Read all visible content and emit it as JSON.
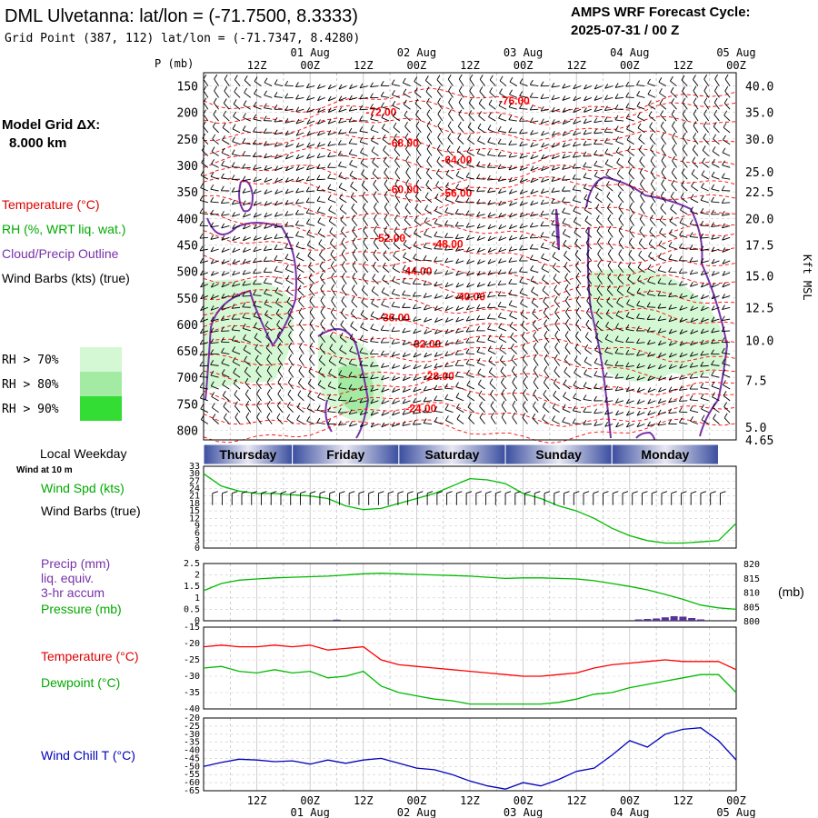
{
  "header": {
    "title": "DML Ulvetanna:  lat/lon = (-71.7500, 8.3333)",
    "grid_point": "Grid Point (387, 112) lat/lon = (-71.7347, 8.4280)",
    "forecast_label": "AMPS WRF Forecast Cycle:",
    "forecast_cycle": "2025-07-31 / 00  Z"
  },
  "sidebar": {
    "model_grid_label": "Model Grid ΔX:",
    "model_grid_value": "8.000 km",
    "legend_temperature": "Temperature (°C)",
    "legend_rh": "RH (%, WRT liq. wat.)",
    "legend_cloud": "Cloud/Precip Outline",
    "legend_wind": "Wind Barbs (kts) (true)",
    "rh_levels": [
      {
        "label": "RH > 70%",
        "color": "#d4f7d4"
      },
      {
        "label": "RH > 80%",
        "color": "#a3eba3"
      },
      {
        "label": "RH > 90%",
        "color": "#33dd33"
      }
    ]
  },
  "colors": {
    "temperature": "#ff0000",
    "rh": "#00aa00",
    "cloud": "#7733aa",
    "pressure": "#00bb00",
    "precip": "#553399",
    "dewpoint": "#00bb00",
    "windchill": "#0000bb",
    "windspd": "#00bb00",
    "weekday_band": "#3a4ea0"
  },
  "time_axis": {
    "hours": [
      0,
      120
    ],
    "ticks": [
      {
        "h": 12,
        "label": "12Z"
      },
      {
        "h": 24,
        "label": "00Z"
      },
      {
        "h": 36,
        "label": "12Z"
      },
      {
        "h": 48,
        "label": "00Z"
      },
      {
        "h": 60,
        "label": "12Z"
      },
      {
        "h": 72,
        "label": "00Z"
      },
      {
        "h": 84,
        "label": "12Z"
      },
      {
        "h": 96,
        "label": "00Z"
      },
      {
        "h": 108,
        "label": "12Z"
      },
      {
        "h": 120,
        "label": "00Z"
      }
    ],
    "dates": [
      {
        "h": 24,
        "label": "01 Aug"
      },
      {
        "h": 48,
        "label": "02 Aug"
      },
      {
        "h": 72,
        "label": "03 Aug"
      },
      {
        "h": 96,
        "label": "04 Aug"
      },
      {
        "h": 120,
        "label": "05 Aug"
      }
    ]
  },
  "weekday": {
    "label": "Local Weekday",
    "days": [
      {
        "label": "Thursday",
        "start": 0,
        "end": 20
      },
      {
        "label": "Friday",
        "start": 20,
        "end": 44
      },
      {
        "label": "Saturday",
        "start": 44,
        "end": 68
      },
      {
        "label": "Sunday",
        "start": 68,
        "end": 92
      },
      {
        "label": "Monday",
        "start": 92,
        "end": 116
      }
    ]
  },
  "chart_data": [
    {
      "type": "heatmap",
      "ylabel": "P (mb)",
      "y2label": "Kft MSL",
      "pressure_ticks": [
        150,
        200,
        250,
        300,
        350,
        400,
        450,
        500,
        550,
        600,
        650,
        700,
        750,
        800
      ],
      "height_ticks": [
        {
          "p": 150,
          "label": "40.0"
        },
        {
          "p": 200,
          "label": "35.0"
        },
        {
          "p": 250,
          "label": "30.0"
        },
        {
          "p": 312,
          "label": "25.0"
        },
        {
          "p": 350,
          "label": "22.5"
        },
        {
          "p": 400,
          "label": "20.0"
        },
        {
          "p": 450,
          "label": "17.5"
        },
        {
          "p": 508,
          "label": "15.0"
        },
        {
          "p": 568,
          "label": "12.5"
        },
        {
          "p": 630,
          "label": "10.0"
        },
        {
          "p": 706,
          "label": "7.5"
        },
        {
          "p": 794,
          "label": "5.0"
        },
        {
          "p": 818,
          "label": "4.65"
        }
      ],
      "temperature_labels": [
        {
          "h": 70,
          "p": 178,
          "label": "-76.00"
        },
        {
          "h": 40,
          "p": 200,
          "label": "-72.00"
        },
        {
          "h": 45,
          "p": 258,
          "label": "-68.00"
        },
        {
          "h": 57,
          "p": 290,
          "label": "-64.00"
        },
        {
          "h": 45,
          "p": 345,
          "label": "-60.00"
        },
        {
          "h": 57,
          "p": 352,
          "label": "-56.00"
        },
        {
          "h": 42,
          "p": 437,
          "label": "-52.00"
        },
        {
          "h": 55,
          "p": 448,
          "label": "-48.00"
        },
        {
          "h": 48,
          "p": 500,
          "label": "-44.00"
        },
        {
          "h": 60,
          "p": 548,
          "label": "-40.00"
        },
        {
          "h": 43,
          "p": 587,
          "label": "-36.00"
        },
        {
          "h": 50,
          "p": 637,
          "label": "-32.00"
        },
        {
          "h": 53,
          "p": 698,
          "label": "-28.00"
        },
        {
          "h": 49,
          "p": 759,
          "label": "-24.00"
        }
      ]
    },
    {
      "type": "line",
      "title": "Wind at 10 m",
      "ylabel": "Wind Spd (kts)",
      "y2label": "Wind Barbs (true)",
      "yticks": [
        0,
        3,
        6,
        9,
        12,
        15,
        18,
        21,
        24,
        27,
        30,
        33
      ],
      "series": [
        {
          "name": "Wind Spd (kts)",
          "x": [
            0,
            4,
            8,
            12,
            16,
            20,
            24,
            28,
            32,
            36,
            40,
            44,
            48,
            52,
            56,
            60,
            64,
            68,
            72,
            76,
            80,
            84,
            88,
            92,
            96,
            100,
            104,
            108,
            112,
            116,
            120
          ],
          "values": [
            30,
            25,
            23,
            22,
            22,
            21.5,
            21,
            20,
            17,
            15.5,
            16,
            18,
            20,
            22,
            25,
            28,
            27.5,
            26,
            22,
            20,
            17,
            15,
            12,
            8,
            5,
            3,
            2,
            2,
            2.5,
            3,
            10
          ]
        }
      ]
    },
    {
      "type": "line",
      "ylabel": "Precip (mm)",
      "ylabel_2": "liq. equiv.",
      "ylabel_3": "3-hr accum",
      "ylabel_4": "Pressure (mb)",
      "y2unit": "(mb)",
      "yticks": [
        0,
        0.5,
        1,
        1.5,
        2,
        2.5
      ],
      "y2ticks": [
        800,
        805,
        810,
        815,
        820
      ],
      "series": [
        {
          "name": "Pressure (mb)",
          "x": [
            0,
            4,
            8,
            12,
            16,
            20,
            24,
            28,
            32,
            36,
            40,
            44,
            48,
            52,
            56,
            60,
            64,
            68,
            72,
            76,
            80,
            84,
            88,
            92,
            96,
            100,
            104,
            108,
            112,
            116,
            120
          ],
          "values": [
            810.5,
            813,
            814.2,
            814.6,
            815,
            815.2,
            815.4,
            815.6,
            816.0,
            816.4,
            816.6,
            816.4,
            816.2,
            816.0,
            815.8,
            815.6,
            815.2,
            814.8,
            815.0,
            815.0,
            814.8,
            814.6,
            814.0,
            813.0,
            812.0,
            810.8,
            809.2,
            807.5,
            805.5,
            804.5,
            804.0
          ]
        },
        {
          "name": "Precip (mm)",
          "x": [
            30,
            98,
            100,
            102,
            104,
            106,
            108,
            110,
            112
          ],
          "values": [
            0.05,
            0.06,
            0.08,
            0.1,
            0.15,
            0.2,
            0.18,
            0.12,
            0.06
          ]
        }
      ]
    },
    {
      "type": "line",
      "ylabel": "Temperature (°C)",
      "ylabel_2": "Dewpoint (°C)",
      "ylim": [
        -40,
        -15
      ],
      "yticks": [
        -15,
        -20,
        -25,
        -30,
        -35,
        -40
      ],
      "series": [
        {
          "name": "Temperature (°C)",
          "x": [
            0,
            4,
            8,
            12,
            16,
            20,
            24,
            28,
            32,
            36,
            40,
            44,
            48,
            52,
            56,
            60,
            64,
            68,
            72,
            76,
            80,
            84,
            88,
            92,
            96,
            100,
            104,
            108,
            112,
            116,
            120
          ],
          "values": [
            -21,
            -20.5,
            -21,
            -21,
            -20.5,
            -21,
            -20.5,
            -22,
            -21.5,
            -21,
            -25,
            -26.5,
            -27,
            -27.5,
            -28,
            -28.5,
            -29,
            -29.5,
            -30,
            -30,
            -29.5,
            -29,
            -27.5,
            -26.5,
            -26,
            -25.5,
            -25,
            -25.5,
            -25.5,
            -25.5,
            -28
          ]
        },
        {
          "name": "Dewpoint (°C)",
          "x": [
            0,
            4,
            8,
            12,
            16,
            20,
            24,
            28,
            32,
            36,
            40,
            44,
            48,
            52,
            56,
            60,
            64,
            68,
            72,
            76,
            80,
            84,
            88,
            92,
            96,
            100,
            104,
            108,
            112,
            116,
            120
          ],
          "values": [
            -27.5,
            -27,
            -28.5,
            -29,
            -28,
            -29,
            -28.5,
            -30.5,
            -30,
            -28.5,
            -33,
            -35,
            -36,
            -37,
            -37.5,
            -38.5,
            -38.5,
            -38.5,
            -38.5,
            -38.5,
            -38,
            -37,
            -35.5,
            -35,
            -33.5,
            -32.5,
            -31.5,
            -30.5,
            -29.5,
            -29.5,
            -35
          ]
        }
      ]
    },
    {
      "type": "line",
      "ylabel": "Wind Chill T (°C)",
      "ylim": [
        -65,
        -20
      ],
      "yticks": [
        -20,
        -25,
        -30,
        -35,
        -40,
        -45,
        -50,
        -55,
        -60,
        -65
      ],
      "series": [
        {
          "name": "Wind Chill T (°C)",
          "x": [
            0,
            4,
            8,
            12,
            16,
            20,
            24,
            28,
            32,
            36,
            40,
            44,
            48,
            52,
            56,
            60,
            64,
            68,
            72,
            76,
            80,
            84,
            88,
            92,
            96,
            100,
            104,
            108,
            112,
            116,
            120
          ],
          "values": [
            -50,
            -47.5,
            -45.5,
            -46,
            -47,
            -46.5,
            -48.5,
            -46,
            -48,
            -46,
            -45,
            -48,
            -51,
            -52,
            -55,
            -59,
            -62,
            -64,
            -60,
            -62,
            -58,
            -53,
            -51,
            -43,
            -34,
            -38,
            -30,
            -27,
            -26,
            -34,
            -46
          ]
        }
      ]
    }
  ]
}
